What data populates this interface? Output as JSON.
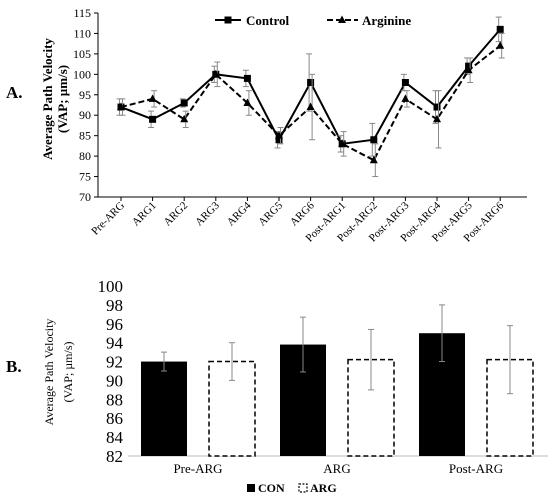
{
  "panels": {
    "a_label": "A.",
    "b_label": "B."
  },
  "chart_data": [
    {
      "type": "line",
      "panel": "A.",
      "ylabel_line1": "Average Path Velocity",
      "ylabel_line2": "(VAP; µm/s)",
      "ylim": [
        70,
        115
      ],
      "yticks": [
        70,
        75,
        80,
        85,
        90,
        95,
        100,
        105,
        110,
        115
      ],
      "grid": false,
      "legend_position": "top-center",
      "categories": [
        "Pre-ARG",
        "ARG1",
        "ARG2",
        "ARG3",
        "ARG4",
        "ARG5",
        "ARG6",
        "Post-ARG1",
        "Post-ARG2",
        "Post-ARG3",
        "Post-ARG4",
        "Post-ARG5",
        "Post-ARG6"
      ],
      "series": [
        {
          "name": "Control",
          "marker": "square",
          "line_style": "solid",
          "values": [
            92,
            89,
            93,
            100,
            99,
            84,
            98,
            83,
            84,
            98,
            92,
            102,
            111
          ],
          "errors": [
            2,
            2,
            1,
            2,
            2,
            2,
            7,
            2,
            4,
            2,
            4,
            2,
            3
          ]
        },
        {
          "name": "Arginine",
          "marker": "triangle",
          "line_style": "dashed",
          "values": [
            92,
            94,
            89,
            100,
            93,
            85,
            92,
            83,
            79,
            94,
            89,
            101,
            107
          ],
          "errors": [
            2,
            2,
            2,
            3,
            3,
            2,
            8,
            3,
            4,
            2,
            7,
            3,
            3
          ]
        }
      ]
    },
    {
      "type": "bar",
      "panel": "B.",
      "ylabel_line1": "Average Path Velocity",
      "ylabel_line2": "(VAP; µm/s)",
      "ylim": [
        82,
        100
      ],
      "yticks": [
        82,
        84,
        86,
        88,
        90,
        92,
        94,
        96,
        98,
        100
      ],
      "grid": false,
      "legend_position": "bottom-center",
      "categories": [
        "Pre-ARG",
        "ARG",
        "Post-ARG"
      ],
      "series": [
        {
          "name": "CON",
          "fill": "#000000",
          "style": "solid",
          "values": [
            92.0,
            93.8,
            95.0
          ],
          "errors": [
            1.0,
            2.9,
            3.0
          ]
        },
        {
          "name": "ARG",
          "fill": "#ffffff",
          "style": "dashed-outline",
          "values": [
            92.0,
            92.2,
            92.2
          ],
          "errors": [
            2.0,
            3.2,
            3.6
          ]
        }
      ]
    }
  ]
}
